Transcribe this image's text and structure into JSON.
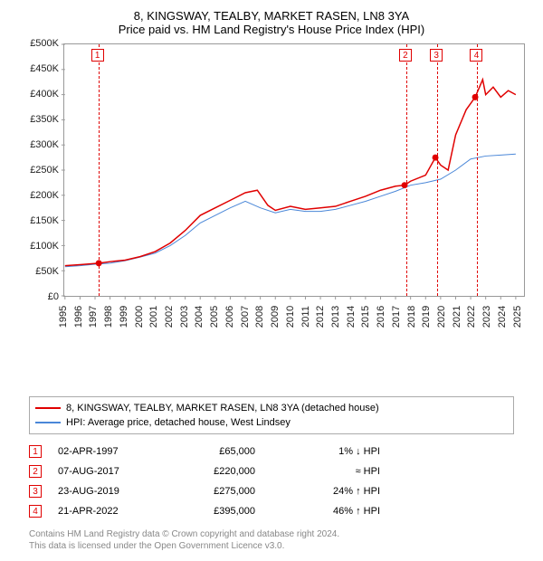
{
  "title_line1": "8, KINGSWAY, TEALBY, MARKET RASEN, LN8 3YA",
  "title_line2": "Price paid vs. HM Land Registry's House Price Index (HPI)",
  "chart": {
    "type": "line",
    "background_color": "#ffffff",
    "border_color": "#999999",
    "x": {
      "min": 1995,
      "max": 2025.5,
      "ticks": [
        1995,
        1996,
        1997,
        1998,
        1999,
        2000,
        2001,
        2002,
        2003,
        2004,
        2005,
        2006,
        2007,
        2008,
        2009,
        2010,
        2011,
        2012,
        2013,
        2014,
        2015,
        2016,
        2017,
        2018,
        2019,
        2020,
        2021,
        2022,
        2023,
        2024,
        2025
      ],
      "tick_labels": [
        "1995",
        "1996",
        "1997",
        "1998",
        "1999",
        "2000",
        "2001",
        "2002",
        "2003",
        "2004",
        "2005",
        "2006",
        "2007",
        "2008",
        "2009",
        "2010",
        "2011",
        "2012",
        "2013",
        "2014",
        "2015",
        "2016",
        "2017",
        "2018",
        "2019",
        "2020",
        "2021",
        "2022",
        "2023",
        "2024",
        "2025"
      ],
      "fontsize": 11
    },
    "y": {
      "min": 0,
      "max": 500000,
      "ticks": [
        0,
        50000,
        100000,
        150000,
        200000,
        250000,
        300000,
        350000,
        400000,
        450000,
        500000
      ],
      "tick_labels": [
        "£0",
        "£50K",
        "£100K",
        "£150K",
        "£200K",
        "£250K",
        "£300K",
        "£350K",
        "£400K",
        "£450K",
        "£500K"
      ],
      "fontsize": 11
    },
    "series_price": {
      "color": "#e00000",
      "line_width": 1.5,
      "points": [
        [
          1995,
          60000
        ],
        [
          1996,
          62000
        ],
        [
          1997.25,
          65000
        ],
        [
          1998,
          68000
        ],
        [
          1999,
          71000
        ],
        [
          2000,
          78000
        ],
        [
          2001,
          88000
        ],
        [
          2002,
          105000
        ],
        [
          2003,
          130000
        ],
        [
          2004,
          160000
        ],
        [
          2005,
          175000
        ],
        [
          2006,
          190000
        ],
        [
          2007,
          205000
        ],
        [
          2007.8,
          210000
        ],
        [
          2008.5,
          180000
        ],
        [
          2009,
          170000
        ],
        [
          2010,
          178000
        ],
        [
          2011,
          172000
        ],
        [
          2012,
          175000
        ],
        [
          2013,
          178000
        ],
        [
          2014,
          188000
        ],
        [
          2015,
          198000
        ],
        [
          2016,
          210000
        ],
        [
          2017,
          218000
        ],
        [
          2017.6,
          220000
        ],
        [
          2018,
          228000
        ],
        [
          2019,
          240000
        ],
        [
          2019.65,
          275000
        ],
        [
          2020,
          260000
        ],
        [
          2020.5,
          250000
        ],
        [
          2021,
          320000
        ],
        [
          2021.7,
          370000
        ],
        [
          2022.3,
          395000
        ],
        [
          2022.8,
          430000
        ],
        [
          2023,
          400000
        ],
        [
          2023.5,
          415000
        ],
        [
          2024,
          395000
        ],
        [
          2024.5,
          408000
        ],
        [
          2025,
          400000
        ]
      ]
    },
    "series_hpi": {
      "color": "#4a87d8",
      "line_width": 1,
      "points": [
        [
          1995,
          58000
        ],
        [
          1996,
          60000
        ],
        [
          1997,
          63000
        ],
        [
          1998,
          65000
        ],
        [
          1999,
          70000
        ],
        [
          2000,
          77000
        ],
        [
          2001,
          85000
        ],
        [
          2002,
          100000
        ],
        [
          2003,
          120000
        ],
        [
          2004,
          145000
        ],
        [
          2005,
          160000
        ],
        [
          2006,
          175000
        ],
        [
          2007,
          188000
        ],
        [
          2008,
          175000
        ],
        [
          2009,
          165000
        ],
        [
          2010,
          172000
        ],
        [
          2011,
          168000
        ],
        [
          2012,
          168000
        ],
        [
          2013,
          172000
        ],
        [
          2014,
          180000
        ],
        [
          2015,
          188000
        ],
        [
          2016,
          198000
        ],
        [
          2017,
          208000
        ],
        [
          2017.6,
          215000
        ],
        [
          2018,
          220000
        ],
        [
          2019,
          225000
        ],
        [
          2020,
          232000
        ],
        [
          2021,
          250000
        ],
        [
          2022,
          272000
        ],
        [
          2023,
          278000
        ],
        [
          2024,
          280000
        ],
        [
          2025,
          282000
        ]
      ]
    },
    "sale_markers": [
      {
        "n": 1,
        "year": 1997.25,
        "price": 65000
      },
      {
        "n": 2,
        "year": 2017.6,
        "price": 220000
      },
      {
        "n": 3,
        "year": 2019.65,
        "price": 275000
      },
      {
        "n": 4,
        "year": 2022.3,
        "price": 395000
      }
    ]
  },
  "legend": {
    "items": [
      {
        "color": "#e00000",
        "label": "8, KINGSWAY, TEALBY, MARKET RASEN, LN8 3YA (detached house)"
      },
      {
        "color": "#4a87d8",
        "label": "HPI: Average price, detached house, West Lindsey"
      }
    ]
  },
  "sales_table": [
    {
      "n": "1",
      "date": "02-APR-1997",
      "price": "£65,000",
      "hpi": "1% ↓ HPI"
    },
    {
      "n": "2",
      "date": "07-AUG-2017",
      "price": "£220,000",
      "hpi": "≈ HPI"
    },
    {
      "n": "3",
      "date": "23-AUG-2019",
      "price": "£275,000",
      "hpi": "24% ↑ HPI"
    },
    {
      "n": "4",
      "date": "21-APR-2022",
      "price": "£395,000",
      "hpi": "46% ↑ HPI"
    }
  ],
  "footer_line1": "Contains HM Land Registry data © Crown copyright and database right 2024.",
  "footer_line2": "This data is licensed under the Open Government Licence v3.0."
}
